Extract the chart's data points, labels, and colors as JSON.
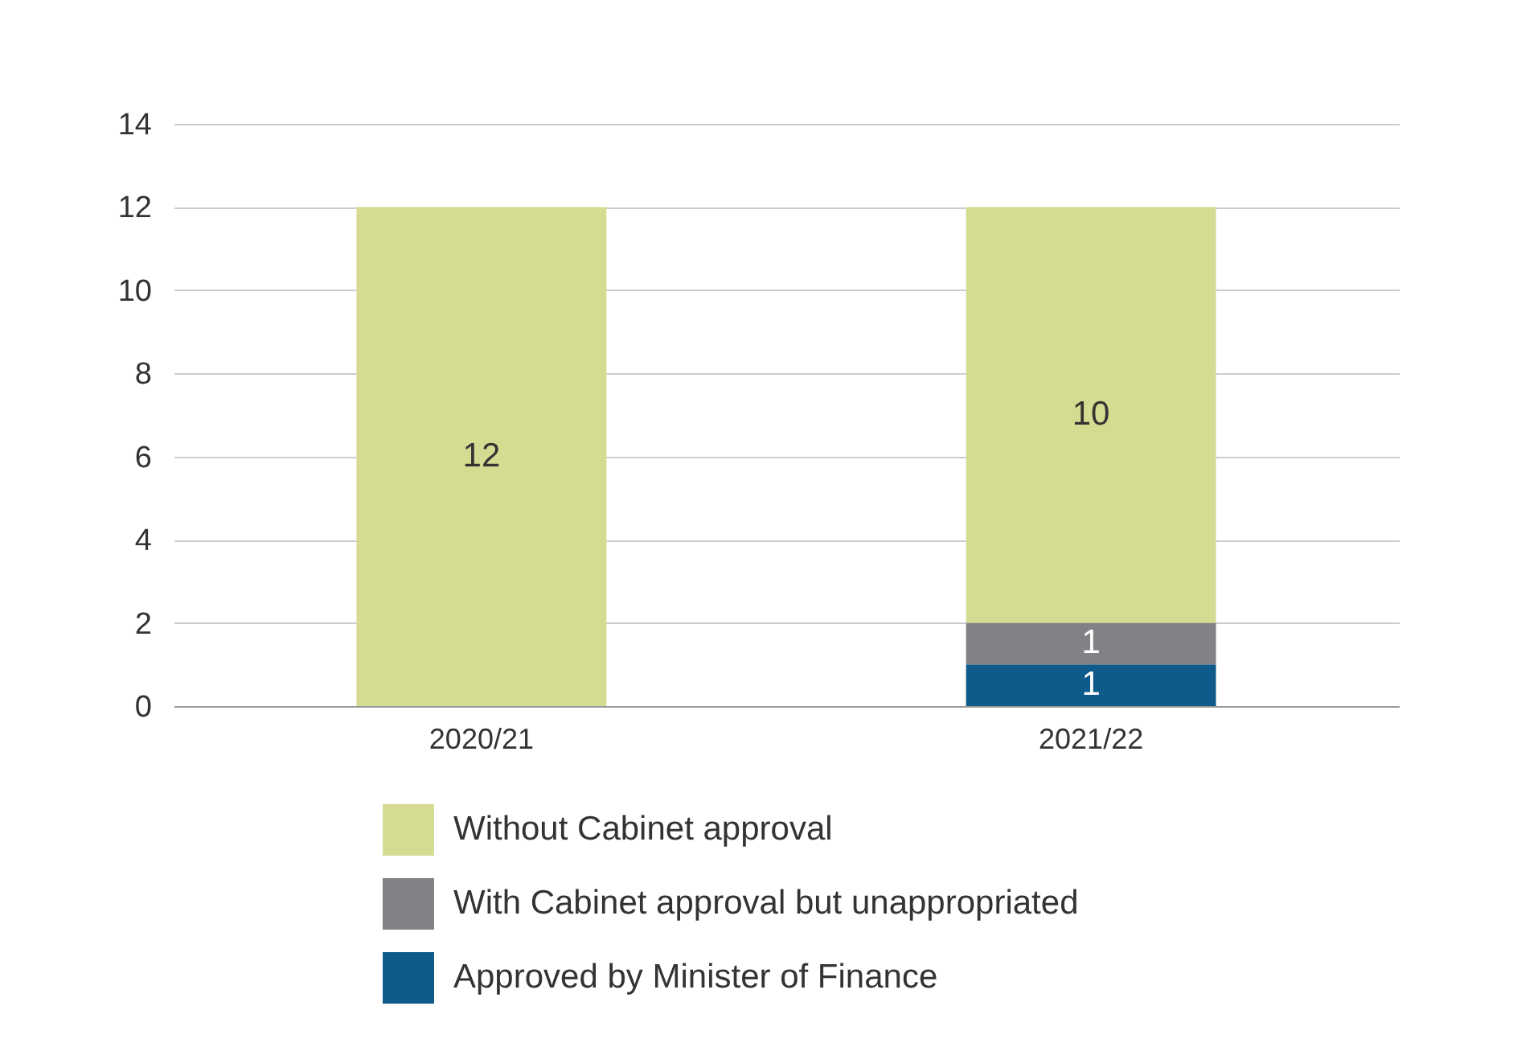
{
  "chart_data": {
    "type": "bar",
    "stacked": true,
    "categories": [
      "2020/21",
      "2021/22"
    ],
    "series": [
      {
        "name": "Approved by Minister of Finance",
        "color": "#0e5a8a",
        "values": [
          0,
          1
        ],
        "value_labels": [
          null,
          "1"
        ]
      },
      {
        "name": "With Cabinet approval but unappropriated",
        "color": "#808285",
        "values": [
          0,
          1
        ],
        "value_labels": [
          null,
          "1"
        ]
      },
      {
        "name": "Without Cabinet approval",
        "color": "#d5dc91",
        "values": [
          12,
          10
        ],
        "value_labels": [
          "12",
          "10"
        ]
      }
    ],
    "ylim": [
      0,
      14
    ],
    "yticks": [
      0,
      2,
      4,
      6,
      8,
      10,
      12,
      14
    ],
    "grid": "y",
    "legend": "bottom"
  }
}
